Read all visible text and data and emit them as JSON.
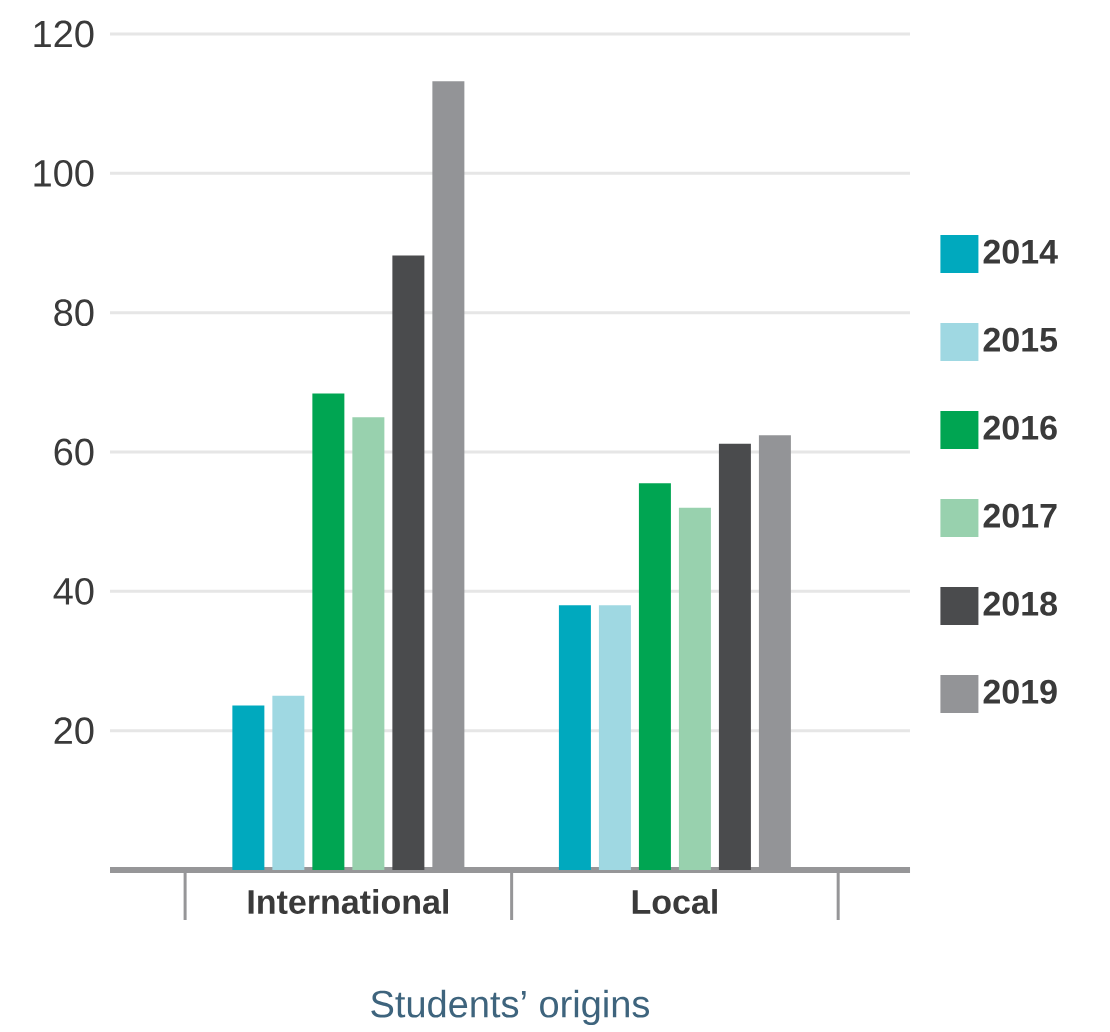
{
  "chart_data": {
    "type": "bar",
    "xlabel": "Students’ origins",
    "categories": [
      "International",
      "Local"
    ],
    "series": [
      {
        "name": "2014",
        "color": "#00a9be",
        "values": [
          23.6,
          38
        ]
      },
      {
        "name": "2015",
        "color": "#9fd8e2",
        "values": [
          25,
          38
        ]
      },
      {
        "name": "2016",
        "color": "#00a552",
        "values": [
          68.4,
          55.5
        ]
      },
      {
        "name": "2017",
        "color": "#98d1ae",
        "values": [
          65,
          52
        ]
      },
      {
        "name": "2018",
        "color": "#4a4b4d",
        "values": [
          88.2,
          61.2
        ]
      },
      {
        "name": "2019",
        "color": "#939497",
        "values": [
          113.2,
          62.4
        ]
      }
    ],
    "ylim": [
      0,
      120
    ],
    "yticks": [
      20,
      40,
      60,
      80,
      100,
      120
    ],
    "grid": "y",
    "legend": "right"
  }
}
